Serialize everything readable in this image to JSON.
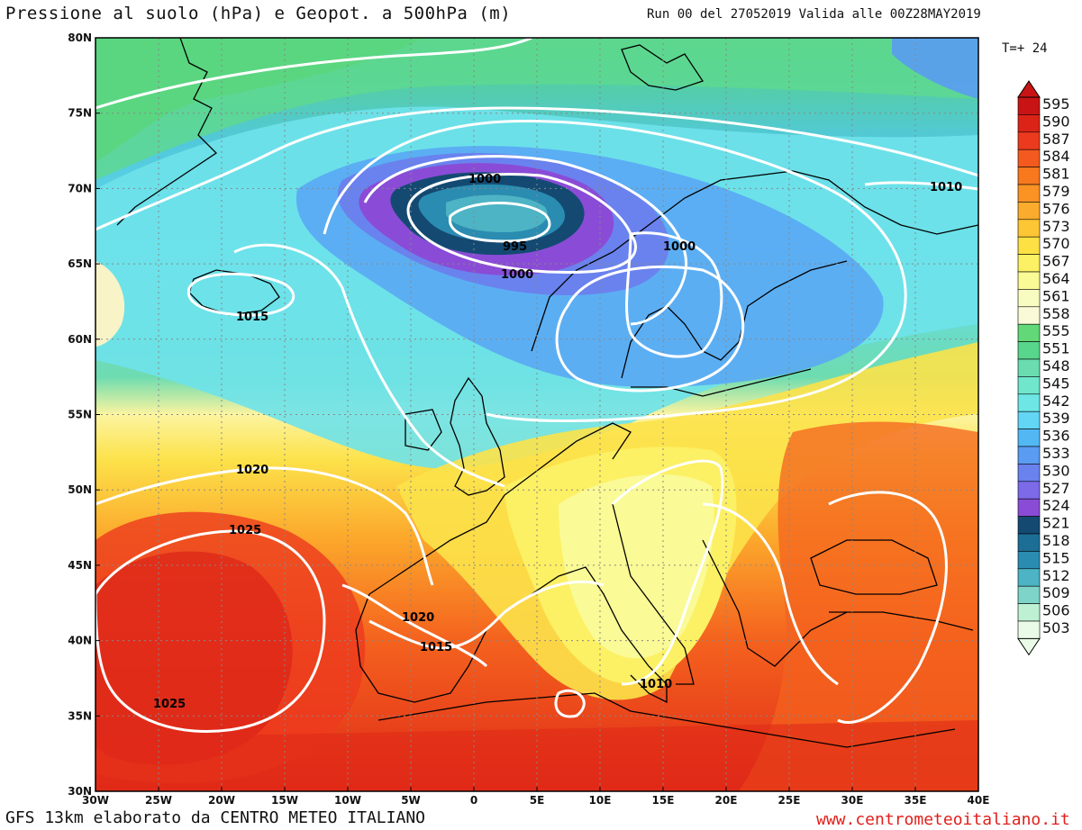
{
  "header": {
    "title": "Pressione al suolo (hPa) e Geopot. a 500hPa (m)",
    "run_info": "Run 00 del 27052019  Valida alle 00Z28MAY2019",
    "time_step": "T=+ 24"
  },
  "footer": {
    "model_credit": "GFS 13km elaborato da CENTRO METEO ITALIANO",
    "website": "www.centrometeoitaliano.it"
  },
  "map": {
    "lon_ticks": [
      "30W",
      "25W",
      "20W",
      "15W",
      "10W",
      "5W",
      "0",
      "5E",
      "10E",
      "15E",
      "20E",
      "25E",
      "30E",
      "35E",
      "40E"
    ],
    "lat_ticks": [
      "80N",
      "75N",
      "70N",
      "65N",
      "60N",
      "55N",
      "50N",
      "45N",
      "40N",
      "35N",
      "30N"
    ],
    "isobar_labels": [
      {
        "text": "1000",
        "name": "isobar-label-1000-north"
      },
      {
        "text": "995",
        "name": "isobar-label-995"
      },
      {
        "text": "1000",
        "name": "isobar-label-1000-south"
      },
      {
        "text": "1000",
        "name": "isobar-label-1000-scandinavia"
      },
      {
        "text": "1010",
        "name": "isobar-label-1010-northeast"
      },
      {
        "text": "1015",
        "name": "isobar-label-1015-iceland"
      },
      {
        "text": "1020",
        "name": "isobar-label-1020-atlantic"
      },
      {
        "text": "1025",
        "name": "isobar-label-1025-north"
      },
      {
        "text": "1025",
        "name": "isobar-label-1025-south"
      },
      {
        "text": "1020",
        "name": "isobar-label-1020-iberia"
      },
      {
        "text": "1015",
        "name": "isobar-label-1015-iberia"
      },
      {
        "text": "1010",
        "name": "isobar-label-1010-italy"
      }
    ]
  },
  "legend": {
    "levels": [
      "595",
      "590",
      "587",
      "584",
      "581",
      "579",
      "576",
      "573",
      "570",
      "567",
      "564",
      "561",
      "558",
      "555",
      "551",
      "548",
      "545",
      "542",
      "539",
      "536",
      "533",
      "530",
      "527",
      "524",
      "521",
      "518",
      "515",
      "512",
      "509",
      "506",
      "503"
    ],
    "colors": [
      "#c81414",
      "#dc2318",
      "#ec3a1e",
      "#f45a1e",
      "#f8781e",
      "#fa9224",
      "#fcac2c",
      "#fdc634",
      "#fde044",
      "#fcf064",
      "#fafa96",
      "#f8fcc0",
      "#fbfad8",
      "#62d878",
      "#58d68c",
      "#6adcb0",
      "#70e6cc",
      "#6ee6e6",
      "#62d6f4",
      "#52b8f4",
      "#5a9cf2",
      "#6a82ee",
      "#7c6ae8",
      "#8a4cd6",
      "#144a72",
      "#1c6e96",
      "#2a8cb0",
      "#4cb4c4",
      "#7ed4c8",
      "#bef0d4",
      "#eafce8"
    ]
  }
}
